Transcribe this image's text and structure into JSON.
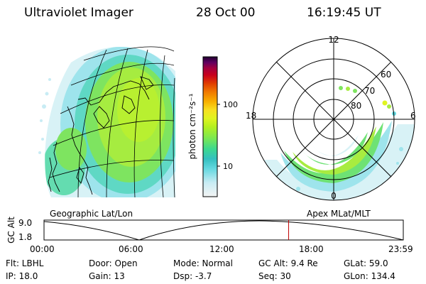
{
  "header": {
    "title": "Ultraviolet Imager",
    "date": "28 Oct 00",
    "time": "16:19:45 UT"
  },
  "geo_panel": {
    "caption": "Geographic Lat/Lon"
  },
  "polar_panel": {
    "caption": "Apex MLat/MLT",
    "mlt_labels": [
      "12",
      "18",
      "6",
      "0"
    ],
    "lat_labels": [
      "60",
      "70",
      "80"
    ]
  },
  "colorbar": {
    "unit_label": "photon cm⁻²s⁻¹",
    "tick_labels": [
      "100",
      "10"
    ],
    "colors": [
      "#f4f4f4",
      "#c8ecf4",
      "#64d8e0",
      "#34c0c0",
      "#3cd890",
      "#7ce850",
      "#b4f020",
      "#e0f420",
      "#f8e020",
      "#f8b000",
      "#f07800",
      "#e03c00",
      "#c8001c",
      "#a00040",
      "#600060",
      "#200030"
    ]
  },
  "timeline": {
    "axis_label": "GC Alt",
    "y_ticks": [
      "9.0",
      "1.8"
    ],
    "x_ticks": [
      "00:00",
      "06:00",
      "12:00",
      "18:00",
      "23:59"
    ],
    "marker_time_hours": 16.33,
    "marker_color": "#c00000"
  },
  "status": {
    "flt": "Flt: LBHL",
    "ip": "IP: 18.0",
    "door": "Door: Open",
    "gain": "Gain: 13",
    "mode": "Mode: Normal",
    "dsp": "Dsp:   -3.7",
    "gc_alt": "GC Alt: 9.4 Re",
    "seq": "Seq: 30",
    "glat": "GLat:  59.0",
    "glon": "GLon: 134.4"
  }
}
